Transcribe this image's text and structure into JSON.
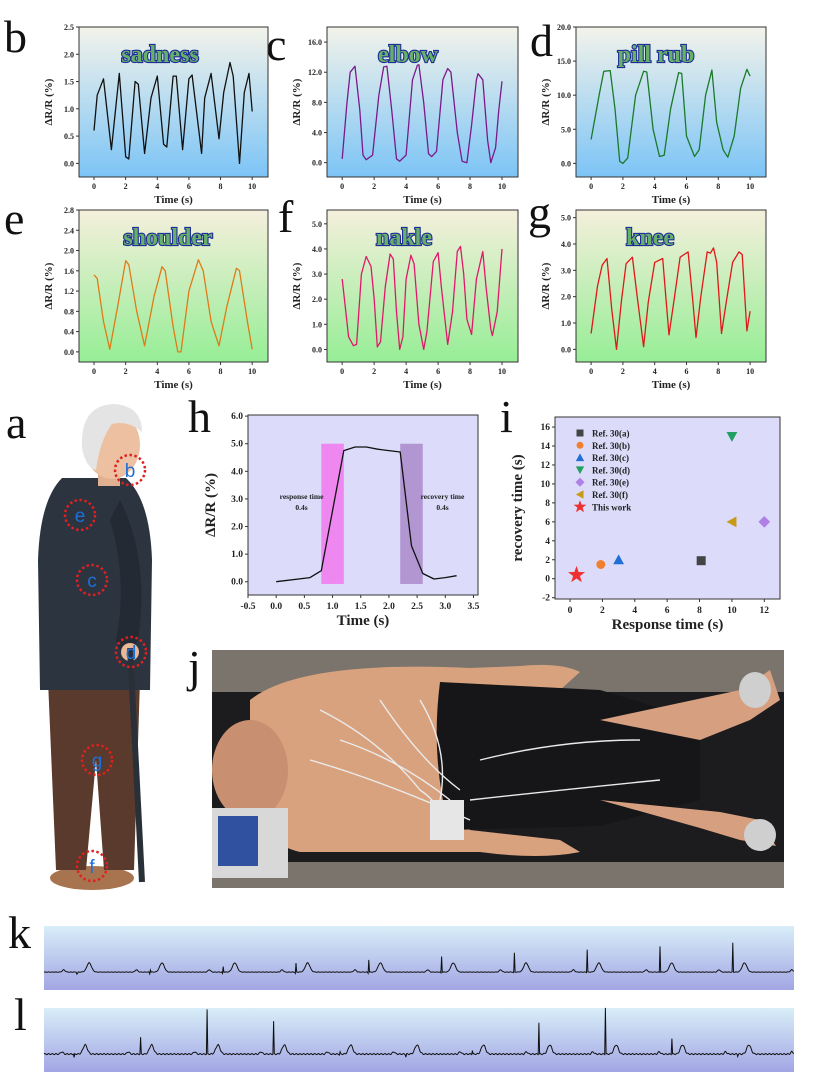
{
  "panel_labels": {
    "a": "a",
    "b": "b",
    "c": "c",
    "d": "d",
    "e": "e",
    "f": "f",
    "g": "g",
    "h": "h",
    "i": "i",
    "j": "j",
    "k": "k",
    "l": "l"
  },
  "body_markers": [
    "b",
    "e",
    "c",
    "d",
    "g",
    "f"
  ],
  "colors": {
    "marker_ring": "#e02020",
    "marker_letter": "#1e6fd8",
    "title_fill": "#66b06a",
    "title_stroke": "#1f2c98"
  },
  "chart_data": [
    {
      "id": "b",
      "type": "line",
      "title": "sadness",
      "xlabel": "Time (s)",
      "ylabel": "ΔR/R (%)",
      "xlim": [
        -0.95,
        11
      ],
      "ylim": [
        -0.25,
        2.5
      ],
      "xticks": [
        "0",
        "2",
        "4",
        "6",
        "8",
        "10"
      ],
      "yticks": [
        "0.0",
        "0.5",
        "1.0",
        "1.5",
        "2.0",
        "2.5"
      ],
      "color": "#111111",
      "background": [
        "#f3f3ea",
        "#7cc4f6"
      ],
      "points": [
        [
          0,
          0.6
        ],
        [
          0.2,
          1.25
        ],
        [
          0.6,
          1.55
        ],
        [
          1.1,
          0.25
        ],
        [
          1.6,
          1.65
        ],
        [
          2.0,
          0.12
        ],
        [
          2.2,
          0.08
        ],
        [
          2.6,
          1.5
        ],
        [
          2.8,
          1.45
        ],
        [
          3.2,
          0.18
        ],
        [
          3.6,
          1.2
        ],
        [
          4.0,
          1.6
        ],
        [
          4.4,
          0.35
        ],
        [
          4.6,
          0.3
        ],
        [
          5.0,
          1.6
        ],
        [
          5.2,
          1.6
        ],
        [
          5.6,
          0.25
        ],
        [
          6.0,
          1.55
        ],
        [
          6.2,
          1.62
        ],
        [
          6.8,
          0.18
        ],
        [
          7.0,
          1.2
        ],
        [
          7.4,
          1.65
        ],
        [
          7.9,
          0.45
        ],
        [
          8.2,
          1.3
        ],
        [
          8.6,
          1.85
        ],
        [
          8.8,
          1.6
        ],
        [
          9.2,
          0.0
        ],
        [
          9.5,
          1.3
        ],
        [
          9.8,
          1.65
        ],
        [
          10,
          0.95
        ]
      ]
    },
    {
      "id": "c",
      "type": "line",
      "title": "elbow",
      "xlabel": "Time (s)",
      "ylabel": "ΔR/R (%)",
      "xlim": [
        -0.95,
        11
      ],
      "ylim": [
        -1.9,
        18
      ],
      "xticks": [
        "0",
        "2",
        "4",
        "6",
        "8",
        "10"
      ],
      "yticks": [
        "0.0",
        "4.0",
        "8.0",
        "12.0",
        "16.0"
      ],
      "color": "#7a1a8a",
      "background": [
        "#f3f3ea",
        "#7cc4f6"
      ],
      "points": [
        [
          0,
          0.5
        ],
        [
          0.3,
          8
        ],
        [
          0.5,
          12
        ],
        [
          0.8,
          12.8
        ],
        [
          1.1,
          7
        ],
        [
          1.3,
          1
        ],
        [
          1.5,
          0.4
        ],
        [
          1.9,
          1
        ],
        [
          2.3,
          9
        ],
        [
          2.6,
          12.7
        ],
        [
          2.8,
          12.8
        ],
        [
          3.1,
          7
        ],
        [
          3.4,
          0.5
        ],
        [
          3.6,
          0.2
        ],
        [
          4.0,
          1
        ],
        [
          4.4,
          11
        ],
        [
          4.7,
          12.9
        ],
        [
          4.8,
          13
        ],
        [
          5.1,
          8
        ],
        [
          5.4,
          1.2
        ],
        [
          5.6,
          0.8
        ],
        [
          5.9,
          1.5
        ],
        [
          6.3,
          11
        ],
        [
          6.6,
          12.5
        ],
        [
          6.8,
          12
        ],
        [
          7.2,
          4
        ],
        [
          7.5,
          0.2
        ],
        [
          7.8,
          0
        ],
        [
          8.1,
          5
        ],
        [
          8.4,
          11
        ],
        [
          8.5,
          11.8
        ],
        [
          8.8,
          11
        ],
        [
          9.1,
          3
        ],
        [
          9.3,
          0
        ],
        [
          9.6,
          2
        ],
        [
          9.8,
          7
        ],
        [
          10,
          10.8
        ]
      ]
    },
    {
      "id": "d",
      "type": "line",
      "title": "pill rub",
      "xlabel": "Time (s)",
      "ylabel": "ΔR/R (%)",
      "xlim": [
        -0.95,
        11
      ],
      "ylim": [
        -2,
        20
      ],
      "xticks": [
        "0",
        "2",
        "4",
        "6",
        "8",
        "10"
      ],
      "yticks": [
        "0.0",
        "5.0",
        "10.0",
        "15.0",
        "20.0"
      ],
      "color": "#1a7a2a",
      "background": [
        "#f3f3ea",
        "#7cc4f6"
      ],
      "points": [
        [
          0,
          3.5
        ],
        [
          0.5,
          10
        ],
        [
          0.8,
          13.5
        ],
        [
          1.2,
          13.6
        ],
        [
          1.5,
          8
        ],
        [
          1.8,
          0.3
        ],
        [
          2.0,
          0
        ],
        [
          2.3,
          0.8
        ],
        [
          2.8,
          10
        ],
        [
          3.3,
          13.5
        ],
        [
          3.5,
          13.4
        ],
        [
          3.9,
          5
        ],
        [
          4.3,
          1.0
        ],
        [
          4.6,
          1.2
        ],
        [
          5.0,
          8
        ],
        [
          5.5,
          13.3
        ],
        [
          5.7,
          13.2
        ],
        [
          6.0,
          4
        ],
        [
          6.5,
          1.0
        ],
        [
          6.8,
          2
        ],
        [
          7.2,
          10
        ],
        [
          7.6,
          13.7
        ],
        [
          7.9,
          6
        ],
        [
          8.3,
          2
        ],
        [
          8.6,
          0.9
        ],
        [
          9.0,
          4
        ],
        [
          9.4,
          11
        ],
        [
          9.8,
          13.8
        ],
        [
          10,
          12.8
        ]
      ]
    },
    {
      "id": "e",
      "type": "line",
      "title": "shoulder",
      "xlabel": "Time (s)",
      "ylabel": "ΔR/R (%)",
      "xlim": [
        -0.95,
        11
      ],
      "ylim": [
        -0.2,
        2.8
      ],
      "xticks": [
        "0",
        "2",
        "4",
        "6",
        "8",
        "10"
      ],
      "yticks": [
        "0.0",
        "0.4",
        "0.8",
        "1.2",
        "1.6",
        "2.0",
        "2.4",
        "2.8"
      ],
      "color": "#e07a18",
      "background": [
        "#f5efdc",
        "#96ee96"
      ],
      "points": [
        [
          0,
          1.52
        ],
        [
          0.2,
          1.45
        ],
        [
          0.6,
          0.6
        ],
        [
          1.0,
          0.05
        ],
        [
          1.5,
          0.9
        ],
        [
          2.0,
          1.8
        ],
        [
          2.2,
          1.72
        ],
        [
          2.7,
          0.8
        ],
        [
          3.2,
          0.12
        ],
        [
          3.8,
          1.1
        ],
        [
          4.3,
          1.68
        ],
        [
          4.5,
          1.6
        ],
        [
          5.0,
          0.5
        ],
        [
          5.3,
          0
        ],
        [
          5.5,
          0.0
        ],
        [
          6.0,
          1.2
        ],
        [
          6.6,
          1.82
        ],
        [
          6.9,
          1.6
        ],
        [
          7.4,
          0.6
        ],
        [
          7.9,
          0.12
        ],
        [
          8.4,
          0.9
        ],
        [
          9.0,
          1.65
        ],
        [
          9.2,
          1.6
        ],
        [
          9.7,
          0.6
        ],
        [
          10,
          0.05
        ]
      ]
    },
    {
      "id": "f",
      "type": "line",
      "title": "nakle",
      "xlabel": "Time (s)",
      "ylabel": "ΔR/R (%)",
      "xlim": [
        -0.95,
        11
      ],
      "ylim": [
        -0.5,
        5.55
      ],
      "xticks": [
        "0",
        "2",
        "4",
        "6",
        "8",
        "10"
      ],
      "yticks": [
        "0.0",
        "1.0",
        "2.0",
        "3.0",
        "4.0",
        "5.0"
      ],
      "color": "#e0186a",
      "background": [
        "#f5efdc",
        "#96ee96"
      ],
      "points": [
        [
          0,
          2.8
        ],
        [
          0.4,
          0.5
        ],
        [
          0.7,
          0.15
        ],
        [
          0.9,
          0.2
        ],
        [
          1.2,
          3.0
        ],
        [
          1.5,
          3.7
        ],
        [
          1.8,
          3.3
        ],
        [
          2.0,
          2.0
        ],
        [
          2.2,
          0.1
        ],
        [
          2.4,
          0.3
        ],
        [
          2.7,
          2.5
        ],
        [
          3.0,
          3.8
        ],
        [
          3.2,
          3.6
        ],
        [
          3.4,
          1.5
        ],
        [
          3.6,
          0
        ],
        [
          3.8,
          0.5
        ],
        [
          4.0,
          2.8
        ],
        [
          4.3,
          3.75
        ],
        [
          4.5,
          3.4
        ],
        [
          4.8,
          1.0
        ],
        [
          5.1,
          0
        ],
        [
          5.3,
          0.7
        ],
        [
          5.7,
          3.5
        ],
        [
          6.0,
          3.85
        ],
        [
          6.2,
          2.5
        ],
        [
          6.6,
          0.2
        ],
        [
          6.9,
          1.5
        ],
        [
          7.2,
          3.9
        ],
        [
          7.4,
          4.1
        ],
        [
          7.6,
          3.0
        ],
        [
          7.8,
          1.2
        ],
        [
          8.1,
          0.6
        ],
        [
          8.4,
          2.8
        ],
        [
          8.8,
          3.9
        ],
        [
          9.0,
          2.5
        ],
        [
          9.3,
          0.8
        ],
        [
          9.4,
          0.55
        ],
        [
          9.7,
          1.5
        ],
        [
          10,
          4.0
        ]
      ]
    },
    {
      "id": "g",
      "type": "line",
      "title": "knee",
      "xlabel": "Time (s)",
      "ylabel": "ΔR/R (%)",
      "xlim": [
        -0.95,
        11
      ],
      "ylim": [
        -0.48,
        5.29
      ],
      "xticks": [
        "0",
        "2",
        "4",
        "6",
        "8",
        "10"
      ],
      "yticks": [
        "0.0",
        "1.0",
        "2.0",
        "3.0",
        "4.0",
        "5.0"
      ],
      "color": "#e01818",
      "background": [
        "#f5efdc",
        "#96ee96"
      ],
      "points": [
        [
          0,
          0.6
        ],
        [
          0.4,
          2.4
        ],
        [
          0.7,
          3.2
        ],
        [
          1.0,
          3.45
        ],
        [
          1.3,
          1.5
        ],
        [
          1.6,
          0
        ],
        [
          1.9,
          1.8
        ],
        [
          2.2,
          3.25
        ],
        [
          2.6,
          3.5
        ],
        [
          2.9,
          2.0
        ],
        [
          3.3,
          0.1
        ],
        [
          3.6,
          1.8
        ],
        [
          4.0,
          3.3
        ],
        [
          4.5,
          3.45
        ],
        [
          4.7,
          2.0
        ],
        [
          4.9,
          0.55
        ],
        [
          5.2,
          1.8
        ],
        [
          5.6,
          3.5
        ],
        [
          6.1,
          3.7
        ],
        [
          6.4,
          1.8
        ],
        [
          6.6,
          0.45
        ],
        [
          6.9,
          2.0
        ],
        [
          7.3,
          3.7
        ],
        [
          7.5,
          3.65
        ],
        [
          7.7,
          3.85
        ],
        [
          7.9,
          3.3
        ],
        [
          8.2,
          0.6
        ],
        [
          8.5,
          1.8
        ],
        [
          8.9,
          3.3
        ],
        [
          9.3,
          3.7
        ],
        [
          9.5,
          3.6
        ],
        [
          9.8,
          0.7
        ],
        [
          10,
          1.45
        ]
      ]
    },
    {
      "id": "h",
      "type": "line",
      "title": "",
      "xlabel": "Time (s)",
      "ylabel": "ΔR/R (%)",
      "xlim": [
        -0.5,
        3.58
      ],
      "ylim": [
        -0.48,
        6.04
      ],
      "xticks": [
        "-0.5",
        "0.0",
        "0.5",
        "1.0",
        "1.5",
        "2.0",
        "2.5",
        "3.0",
        "3.5"
      ],
      "yticks": [
        "0.0",
        "1.0",
        "2.0",
        "3.0",
        "4.0",
        "5.0",
        "6.0"
      ],
      "color": "#111111",
      "background": [
        "#dcdcfa",
        "#dcdcfa"
      ],
      "bands": [
        {
          "x": [
            0.8,
            1.2
          ],
          "y": [
            -0.08,
            5.0
          ],
          "color": "#ee88f0"
        },
        {
          "x": [
            2.2,
            2.6
          ],
          "y": [
            -0.08,
            5.0
          ],
          "color": "#b296d2"
        }
      ],
      "annotations": [
        [
          "response time",
          "0.4s"
        ],
        [
          "recovery time",
          "0.4s"
        ]
      ],
      "points": [
        [
          0,
          0
        ],
        [
          0.6,
          0.15
        ],
        [
          0.8,
          0.4
        ],
        [
          1.2,
          4.75
        ],
        [
          1.4,
          4.88
        ],
        [
          1.6,
          4.88
        ],
        [
          1.8,
          4.8
        ],
        [
          2.0,
          4.75
        ],
        [
          2.2,
          4.7
        ],
        [
          2.4,
          1.3
        ],
        [
          2.6,
          0.3
        ],
        [
          2.8,
          0.1
        ],
        [
          3.0,
          0.15
        ],
        [
          3.2,
          0.22
        ]
      ]
    },
    {
      "id": "i",
      "type": "scatter",
      "title": "",
      "xlabel": "Response time (s)",
      "ylabel": "recovery time (s)",
      "xlim": [
        -0.93,
        12.97
      ],
      "ylim": [
        -2.14,
        17.06
      ],
      "xticks": [
        "0",
        "2",
        "4",
        "6",
        "8",
        "10",
        "12"
      ],
      "yticks": [
        "-2",
        "0",
        "2",
        "4",
        "6",
        "8",
        "10",
        "12",
        "14",
        "16"
      ],
      "background": [
        "#dcdcfa",
        "#dcdcfa"
      ],
      "legend_position": "top-left",
      "series": [
        {
          "name": "Ref. 30(a)",
          "marker": "square",
          "color": "#444444",
          "x": 8.1,
          "y": 1.9
        },
        {
          "name": "Ref. 30(b)",
          "marker": "circle",
          "color": "#f08030",
          "x": 1.9,
          "y": 1.5
        },
        {
          "name": "Ref. 30(c)",
          "marker": "triangle-up",
          "color": "#1f6fd6",
          "x": 3.0,
          "y": 2.0
        },
        {
          "name": "Ref. 30(d)",
          "marker": "triangle-down",
          "color": "#22a060",
          "x": 10.0,
          "y": 15.0
        },
        {
          "name": "Ref. 30(e)",
          "marker": "diamond",
          "color": "#b080e6",
          "x": 12.0,
          "y": 6.0
        },
        {
          "name": "Ref. 30(f)",
          "marker": "triangle-left",
          "color": "#c89a18",
          "x": 10.0,
          "y": 6.0
        },
        {
          "name": "This work",
          "marker": "star",
          "color": "#ee3030",
          "x": 0.4,
          "y": 0.4
        }
      ]
    },
    {
      "id": "k",
      "type": "line",
      "title": "",
      "beats": 10,
      "color": "#111111",
      "background": [
        "#d8eef8",
        "#a2a6e4"
      ]
    },
    {
      "id": "l",
      "type": "line",
      "title": "",
      "beats": 11,
      "color": "#111111",
      "background": [
        "#d8eef8",
        "#a2a6e4"
      ]
    }
  ]
}
